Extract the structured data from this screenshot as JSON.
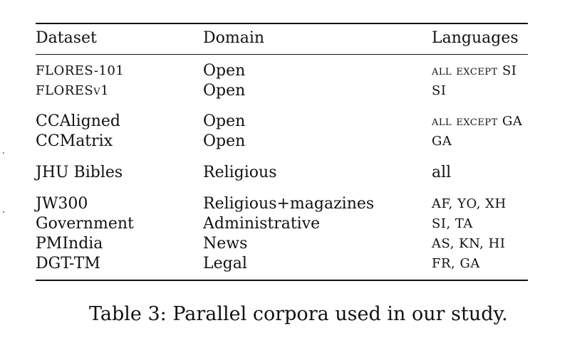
{
  "table": {
    "headers": [
      "Dataset",
      "Domain",
      "Languages"
    ],
    "rows": [
      {
        "dataset": "FLORES-101",
        "domain": "Open",
        "languages": "all except SI"
      },
      {
        "dataset": "FLORESv1",
        "domain": "Open",
        "languages": "SI"
      },
      {
        "dataset": "CCAligned",
        "domain": "Open",
        "languages": "all except GA"
      },
      {
        "dataset": "CCMatrix",
        "domain": "Open",
        "languages": "GA"
      },
      {
        "dataset": "JHU Bibles",
        "domain": "Religious",
        "languages": "all"
      },
      {
        "dataset": "JW300",
        "domain": "Religious+magazines",
        "languages": "AF, YO, XH"
      },
      {
        "dataset": "Government",
        "domain": "Administrative",
        "languages": "SI, TA"
      },
      {
        "dataset": "PMIndia",
        "domain": "News",
        "languages": "AS, KN, HI"
      },
      {
        "dataset": "DGT-TM",
        "domain": "Legal",
        "languages": "FR, GA"
      }
    ]
  },
  "caption": "Table 3: Parallel corpora used in our study."
}
